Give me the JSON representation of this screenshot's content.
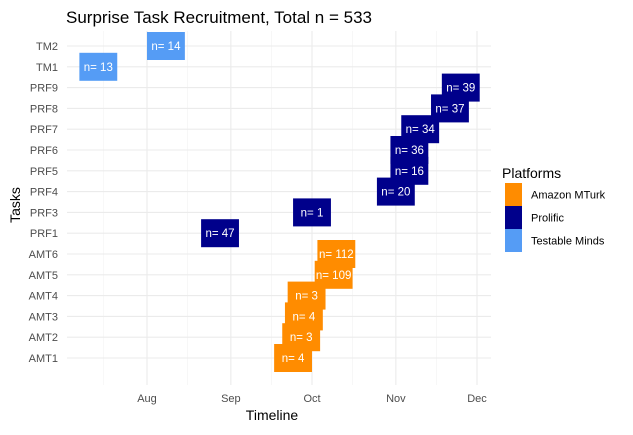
{
  "chart_data": {
    "type": "bar",
    "orientation": "horizontal-timeline",
    "title": "Surprise Task Recruitment, Total n = 533",
    "xlabel": "Timeline",
    "ylabel": "Tasks",
    "x_ticks": [
      "Aug",
      "Sep",
      "Oct",
      "Nov",
      "Dec"
    ],
    "categories": [
      "AMT1",
      "AMT2",
      "AMT3",
      "AMT4",
      "AMT5",
      "AMT6",
      "PRF1",
      "PRF3",
      "PRF4",
      "PRF5",
      "PRF6",
      "PRF7",
      "PRF8",
      "PRF9",
      "TM1",
      "TM2"
    ],
    "grid": true,
    "legend": {
      "title": "Platforms",
      "placement": "right",
      "entries": [
        {
          "name": "Amazon MTurk",
          "color": "#FF8C00"
        },
        {
          "name": "Prolific",
          "color": "#00008B"
        },
        {
          "name": "Testable Minds",
          "color": "#559CF5"
        }
      ]
    },
    "tasks": [
      {
        "task": "AMT1",
        "platform": "Amazon MTurk",
        "label": "n= 4",
        "start": "2019-09-17",
        "end": "2019-10-01"
      },
      {
        "task": "AMT2",
        "platform": "Amazon MTurk",
        "label": "n= 3",
        "start": "2019-09-20",
        "end": "2019-10-04"
      },
      {
        "task": "AMT3",
        "platform": "Amazon MTurk",
        "label": "n= 4",
        "start": "2019-09-21",
        "end": "2019-10-05"
      },
      {
        "task": "AMT4",
        "platform": "Amazon MTurk",
        "label": "n= 3",
        "start": "2019-09-22",
        "end": "2019-10-06"
      },
      {
        "task": "AMT5",
        "platform": "Amazon MTurk",
        "label": "n= 109",
        "start": "2019-10-02",
        "end": "2019-10-16"
      },
      {
        "task": "AMT6",
        "platform": "Amazon MTurk",
        "label": "n= 112",
        "start": "2019-10-03",
        "end": "2019-10-17"
      },
      {
        "task": "PRF1",
        "platform": "Prolific",
        "label": "n= 47",
        "start": "2019-08-21",
        "end": "2019-09-04"
      },
      {
        "task": "PRF3",
        "platform": "Prolific",
        "label": "n= 1",
        "start": "2019-09-24",
        "end": "2019-10-08"
      },
      {
        "task": "PRF4",
        "platform": "Prolific",
        "label": "n= 20",
        "start": "2019-10-25",
        "end": "2019-11-08"
      },
      {
        "task": "PRF5",
        "platform": "Prolific",
        "label": "n= 16",
        "start": "2019-10-30",
        "end": "2019-11-13"
      },
      {
        "task": "PRF6",
        "platform": "Prolific",
        "label": "n= 36",
        "start": "2019-10-30",
        "end": "2019-11-13"
      },
      {
        "task": "PRF7",
        "platform": "Prolific",
        "label": "n= 34",
        "start": "2019-11-03",
        "end": "2019-11-17"
      },
      {
        "task": "PRF8",
        "platform": "Prolific",
        "label": "n= 37",
        "start": "2019-11-14",
        "end": "2019-11-28"
      },
      {
        "task": "PRF9",
        "platform": "Prolific",
        "label": "n= 39",
        "start": "2019-11-18",
        "end": "2019-12-02"
      },
      {
        "task": "TM1",
        "platform": "Testable Minds",
        "label": "n= 13",
        "start": "2019-07-07",
        "end": "2019-07-21"
      },
      {
        "task": "TM2",
        "platform": "Testable Minds",
        "label": "n= 14",
        "start": "2019-08-01",
        "end": "2019-08-15"
      }
    ],
    "colors": {
      "Amazon MTurk": "#FF8C00",
      "Prolific": "#00008B",
      "Testable Minds": "#559CF5"
    }
  }
}
